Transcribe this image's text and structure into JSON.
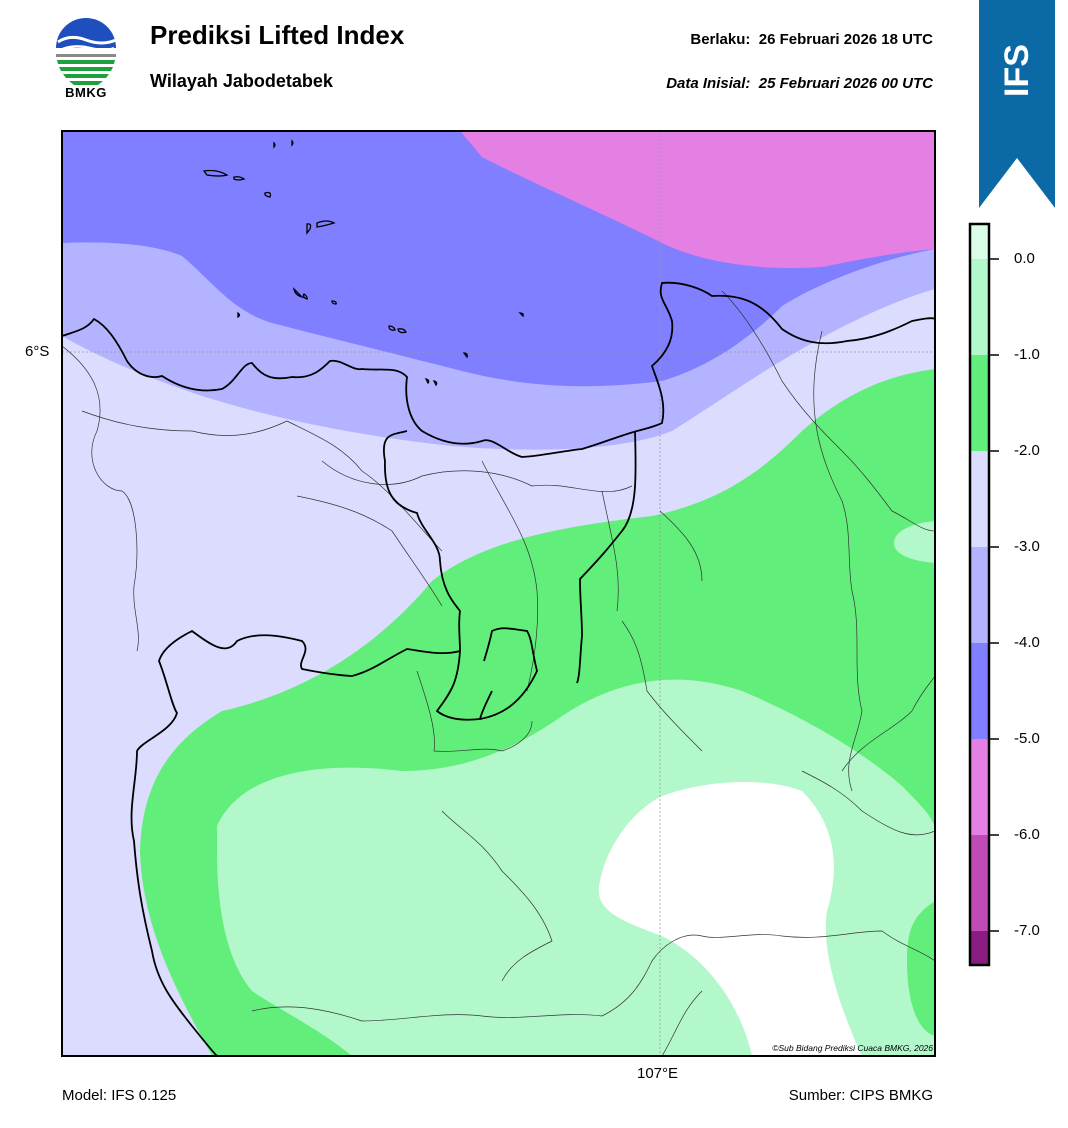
{
  "header": {
    "logo_text": "BMKG",
    "title": "Prediksi Lifted Index",
    "subtitle": "Wilayah Jabodetabek",
    "valid_label": "Berlaku:",
    "valid_value": "26 Februari 2026 18 UTC",
    "init_label": "Data Inisial:",
    "init_value": "25 Februari 2026 00 UTC",
    "model_badge": "IFS"
  },
  "map": {
    "lat_label": "6°S",
    "lon_label": "107°E",
    "copyright": "©Sub Bidang Prediksi Cuaca BMKG, 2026",
    "colors": {
      "below_minus5": "#e47fe4",
      "minus5_to_minus4": "#7f7fff",
      "minus4_to_minus3": "#b3b3ff",
      "minus3_to_minus2": "#dcdcff",
      "minus2_to_minus1": "#62ee7a",
      "minus1_to_0": "#b3f8cb",
      "above_0": "#ffffff",
      "coastline": "#000000",
      "admin_lines": "#333333"
    }
  },
  "colorbar": {
    "labels": [
      "0.0",
      "-1.0",
      "-2.0",
      "-3.0",
      "-4.0",
      "-5.0",
      "-6.0",
      "-7.0"
    ],
    "bands": [
      {
        "from": "max",
        "to": 0,
        "color": "#d9fde6"
      },
      {
        "from": 0,
        "to": -1,
        "color": "#b3f8cb"
      },
      {
        "from": -1,
        "to": -2,
        "color": "#62ee7a"
      },
      {
        "from": -2,
        "to": -3,
        "color": "#dcdcff"
      },
      {
        "from": -3,
        "to": -4,
        "color": "#b3b3ff"
      },
      {
        "from": -4,
        "to": -5,
        "color": "#7f7fff"
      },
      {
        "from": -5,
        "to": -6,
        "color": "#e47fe4"
      },
      {
        "from": -6,
        "to": -7,
        "color": "#c04bb8"
      },
      {
        "from": -7,
        "to": "min",
        "color": "#8a1d82"
      }
    ]
  },
  "footer": {
    "model": "Model: IFS 0.125",
    "source": "Sumber: CIPS BMKG"
  }
}
